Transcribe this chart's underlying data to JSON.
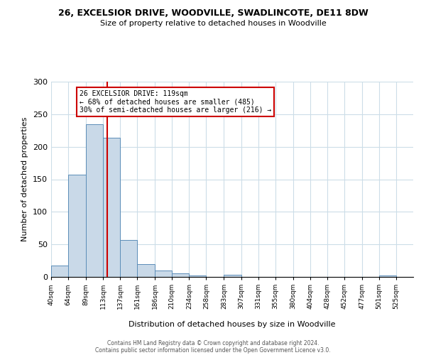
{
  "title": "26, EXCELSIOR DRIVE, WOODVILLE, SWADLINCOTE, DE11 8DW",
  "subtitle": "Size of property relative to detached houses in Woodville",
  "xlabel": "Distribution of detached houses by size in Woodville",
  "ylabel": "Number of detached properties",
  "bar_edges": [
    40,
    64,
    89,
    113,
    137,
    161,
    186,
    210,
    234,
    258,
    283,
    307,
    331,
    355,
    380,
    404,
    428,
    452,
    477,
    501,
    525
  ],
  "bar_heights": [
    18,
    157,
    234,
    214,
    57,
    20,
    10,
    5,
    2,
    0,
    3,
    0,
    0,
    0,
    0,
    0,
    0,
    0,
    0,
    2,
    0
  ],
  "bar_color": "#c9d9e8",
  "bar_edge_color": "#5b8db8",
  "vline_x": 119,
  "vline_color": "#cc0000",
  "annotation_line1": "26 EXCELSIOR DRIVE: 119sqm",
  "annotation_line2": "← 68% of detached houses are smaller (485)",
  "annotation_line3": "30% of semi-detached houses are larger (216) →",
  "annotation_box_color": "#ffffff",
  "annotation_box_edge": "#cc0000",
  "tick_labels": [
    "40sqm",
    "64sqm",
    "89sqm",
    "113sqm",
    "137sqm",
    "161sqm",
    "186sqm",
    "210sqm",
    "234sqm",
    "258sqm",
    "283sqm",
    "307sqm",
    "331sqm",
    "355sqm",
    "380sqm",
    "404sqm",
    "428sqm",
    "452sqm",
    "477sqm",
    "501sqm",
    "525sqm"
  ],
  "ylim": [
    0,
    300
  ],
  "yticks": [
    0,
    50,
    100,
    150,
    200,
    250,
    300
  ],
  "footer_line1": "Contains HM Land Registry data © Crown copyright and database right 2024.",
  "footer_line2": "Contains public sector information licensed under the Open Government Licence v3.0.",
  "background_color": "#ffffff",
  "grid_color": "#ccdde8"
}
